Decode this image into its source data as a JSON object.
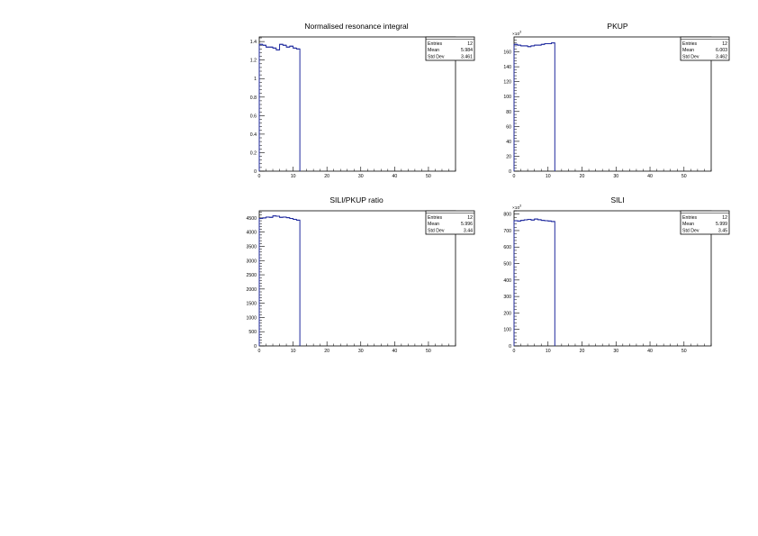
{
  "chart_data": [
    {
      "type": "histogram",
      "title": "Normalised resonance integral",
      "multiplier": "",
      "x_bin_edges": [
        0,
        1,
        2,
        3,
        4,
        5,
        6,
        7,
        8,
        9,
        10,
        11,
        12
      ],
      "values": [
        1.37,
        1.36,
        1.34,
        1.34,
        1.33,
        1.31,
        1.37,
        1.36,
        1.34,
        1.35,
        1.33,
        1.32
      ],
      "xlim": [
        0,
        58
      ],
      "ylim": [
        0,
        1.45
      ],
      "x_ticks": [
        0,
        10,
        20,
        30,
        40,
        50
      ],
      "y_ticks": [
        0,
        0.2,
        0.4,
        0.6,
        0.8,
        1,
        1.2,
        1.4
      ],
      "y_tick_labels": [
        "0",
        "0.2",
        "0.4",
        "0.6",
        "0.8",
        "1",
        "1.2",
        "1.4"
      ],
      "stats": {
        "entries_label": "Entries",
        "entries": "12",
        "mean_label": "Mean",
        "mean": "5.984",
        "stddev_label": "Std Dev",
        "stddev": "3.461"
      }
    },
    {
      "type": "histogram",
      "title": "PKUP",
      "multiplier": "×10",
      "multiplier_exp": "3",
      "x_bin_edges": [
        0,
        1,
        2,
        3,
        4,
        5,
        6,
        7,
        8,
        9,
        10,
        11,
        12
      ],
      "values": [
        170,
        169,
        168,
        168,
        167,
        168,
        169,
        169,
        170,
        171,
        171,
        172
      ],
      "xlim": [
        0,
        58
      ],
      "ylim": [
        0,
        180
      ],
      "x_ticks": [
        0,
        10,
        20,
        30,
        40,
        50
      ],
      "y_ticks": [
        0,
        20,
        40,
        60,
        80,
        100,
        120,
        140,
        160
      ],
      "y_tick_labels": [
        "0",
        "20",
        "40",
        "60",
        "80",
        "100",
        "120",
        "140",
        "160"
      ],
      "stats": {
        "entries_label": "Entries",
        "entries": "12",
        "mean_label": "Mean",
        "mean": "6.003",
        "stddev_label": "Std Dev",
        "stddev": "3.462"
      }
    },
    {
      "type": "histogram",
      "title": "SILI/PKUP ratio",
      "multiplier": "",
      "x_bin_edges": [
        0,
        1,
        2,
        3,
        4,
        5,
        6,
        7,
        8,
        9,
        10,
        11,
        12
      ],
      "values": [
        4480,
        4500,
        4530,
        4520,
        4570,
        4560,
        4520,
        4530,
        4510,
        4480,
        4450,
        4420
      ],
      "xlim": [
        0,
        58
      ],
      "ylim": [
        0,
        4750
      ],
      "x_ticks": [
        0,
        10,
        20,
        30,
        40,
        50
      ],
      "y_ticks": [
        0,
        500,
        1000,
        1500,
        2000,
        2500,
        3000,
        3500,
        4000,
        4500
      ],
      "y_tick_labels": [
        "0",
        "500",
        "1000",
        "1500",
        "2000",
        "2500",
        "3000",
        "3500",
        "4000",
        "4500"
      ],
      "stats": {
        "entries_label": "Entries",
        "entries": "12",
        "mean_label": "Mean",
        "mean": "5.996",
        "stddev_label": "Std Dev",
        "stddev": "3.44"
      }
    },
    {
      "type": "histogram",
      "title": "SILI",
      "multiplier": "×10",
      "multiplier_exp": "3",
      "x_bin_edges": [
        0,
        1,
        2,
        3,
        4,
        5,
        6,
        7,
        8,
        9,
        10,
        11,
        12
      ],
      "values": [
        760,
        758,
        762,
        765,
        768,
        764,
        770,
        766,
        762,
        760,
        758,
        755
      ],
      "xlim": [
        0,
        58
      ],
      "ylim": [
        0,
        820
      ],
      "x_ticks": [
        0,
        10,
        20,
        30,
        40,
        50
      ],
      "y_ticks": [
        0,
        100,
        200,
        300,
        400,
        500,
        600,
        700,
        800
      ],
      "y_tick_labels": [
        "0",
        "100",
        "200",
        "300",
        "400",
        "500",
        "600",
        "700",
        "800"
      ],
      "stats": {
        "entries_label": "Entries",
        "entries": "12",
        "mean_label": "Mean",
        "mean": "5.999",
        "stddev_label": "Std Dev",
        "stddev": "3.45"
      }
    }
  ],
  "colors": {
    "histogram_line": "#1f2a9e",
    "axis": "#000000",
    "background": "#ffffff"
  }
}
